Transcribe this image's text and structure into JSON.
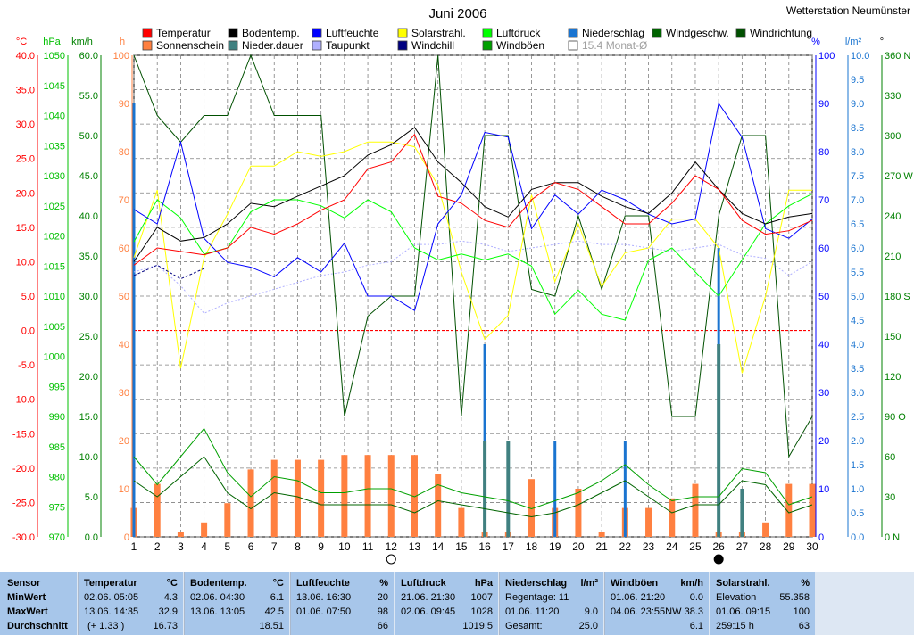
{
  "title": "Juni 2006",
  "station": "Wetterstation Neumünster",
  "colors": {
    "temperature": "#ff0000",
    "ground_temp": "#000000",
    "humidity": "#0000ff",
    "solar": "#ffff66",
    "pressure": "#00ff00",
    "precipitation": "#1a74d0",
    "wind_speed": "#006400",
    "wind_dir": "#005000",
    "sunshine": "#ff8040",
    "precip_duration": "#408080",
    "dewpoint": "#b0b0ff",
    "windchill": "#000080",
    "gusts": "#00a000",
    "monthly_avg": "#c0c0c0",
    "background": "#ffffff",
    "footer_bg": "#a7c6ea",
    "grid": "#808080",
    "zero_line": "#ff0000"
  },
  "legend": [
    {
      "label": "Temperatur",
      "color": "#ff0000"
    },
    {
      "label": "Bodentemp.",
      "color": "#000000"
    },
    {
      "label": "Luftfeuchte",
      "color": "#0000ff"
    },
    {
      "label": "Solarstrahl.",
      "color": "#ffff00"
    },
    {
      "label": "Luftdruck",
      "color": "#00ff00"
    },
    {
      "label": "Niederschlag",
      "color": "#1a74d0"
    },
    {
      "label": "Windgeschw.",
      "color": "#006400"
    },
    {
      "label": "Windrichtung",
      "color": "#005000"
    },
    {
      "label": "Sonnenschein",
      "color": "#ff8040"
    },
    {
      "label": "Nieder.dauer",
      "color": "#408080"
    },
    {
      "label": "Taupunkt",
      "color": "#b0b0ff"
    },
    {
      "label": "Windchill",
      "color": "#000080"
    },
    {
      "label": "Windböen",
      "color": "#00a000"
    },
    {
      "label": "15.4 Monat-Ø",
      "color": "#ffffff"
    }
  ],
  "axis_units": {
    "temp": "°C",
    "hpa": "hPa",
    "kmh": "km/h",
    "h": "h",
    "pct": "%",
    "lm2": "l/m²",
    "deg": "°",
    "w": "W",
    "s": "S",
    "n": "N"
  },
  "axes": {
    "temp": [
      "40.0",
      "35.0",
      "30.0",
      "25.0",
      "20.0",
      "15.0",
      "10.0",
      "5.0",
      "0.0",
      "-5.0",
      "-10.0",
      "-15.0",
      "-20.0",
      "-25.0",
      "-30.0"
    ],
    "hpa": [
      "1050",
      "1045",
      "1040",
      "1035",
      "1030",
      "1025",
      "1020",
      "1015",
      "1010",
      "1005",
      "1000",
      "995",
      "990",
      "985",
      "980",
      "975",
      "970"
    ],
    "kmh": [
      "60.0",
      "55.0",
      "50.0",
      "45.0",
      "40.0",
      "35.0",
      "30.0",
      "25.0",
      "20.0",
      "15.0",
      "10.0",
      "5.0",
      "0.0"
    ],
    "h": [
      "100",
      "90",
      "80",
      "70",
      "60",
      "50",
      "40",
      "30",
      "20",
      "10",
      "0"
    ],
    "pct": [
      "100",
      "90",
      "80",
      "70",
      "60",
      "50",
      "40",
      "30",
      "20",
      "10",
      "0"
    ],
    "lm2": [
      "10.0",
      "9.5",
      "9.0",
      "8.5",
      "8.0",
      "7.5",
      "7.0",
      "6.5",
      "6.0",
      "5.5",
      "5.0",
      "4.5",
      "4.0",
      "3.5",
      "3.0",
      "2.5",
      "2.0",
      "1.5",
      "1.0",
      "0.5",
      "0.0"
    ],
    "deg": [
      "360 N",
      "330",
      "300",
      "270 W",
      "240",
      "210",
      "180 S",
      "150",
      "120",
      "90 O",
      "60",
      "30",
      "0 N"
    ]
  },
  "chart_data": {
    "type": "line",
    "title": "Juni 2006",
    "x": [
      1,
      2,
      3,
      4,
      5,
      6,
      7,
      8,
      9,
      10,
      11,
      12,
      13,
      14,
      15,
      16,
      17,
      18,
      19,
      20,
      21,
      22,
      23,
      24,
      25,
      26,
      27,
      28,
      29,
      30
    ],
    "xlim": [
      1,
      30
    ],
    "grid": true,
    "legend_position": "top",
    "ylim": {
      "temp": [
        -30,
        40
      ],
      "pressure": [
        970,
        1050
      ],
      "wind": [
        0,
        60
      ],
      "humidity": [
        0,
        100
      ],
      "precip": [
        0,
        10
      ],
      "sunshine": [
        0,
        100
      ],
      "wind_dir": [
        0,
        360
      ]
    },
    "series": [
      {
        "name": "Temperatur",
        "axis": "temp",
        "color": "#ff0000",
        "values": [
          9.5,
          12.0,
          11.5,
          11.0,
          12.0,
          15.0,
          14.0,
          15.5,
          17.5,
          19.0,
          23.5,
          24.5,
          28.5,
          19.5,
          18.5,
          16.0,
          15.0,
          19.0,
          21.5,
          20.5,
          18.0,
          15.5,
          15.5,
          18.5,
          22.5,
          20.5,
          16.0,
          14.0,
          14.5,
          16.0
        ]
      },
      {
        "name": "Bodentemp.",
        "axis": "temp",
        "color": "#000000",
        "values": [
          10.0,
          15.0,
          13.0,
          13.5,
          15.5,
          18.5,
          18.0,
          19.5,
          21.0,
          22.5,
          25.5,
          27.0,
          29.5,
          24.5,
          21.5,
          18.0,
          16.5,
          20.5,
          21.5,
          21.5,
          19.5,
          18.0,
          17.0,
          20.0,
          24.5,
          20.5,
          17.0,
          15.5,
          16.5,
          17.0
        ]
      },
      {
        "name": "Luftfeuchte",
        "axis": "humidity",
        "color": "#0000ff",
        "values": [
          68,
          65,
          82,
          62,
          57,
          56,
          54,
          58,
          55,
          61,
          50,
          50,
          47,
          65,
          71,
          84,
          83,
          64,
          71,
          67,
          72,
          70,
          67,
          65,
          66,
          90,
          83,
          64,
          62,
          66
        ]
      },
      {
        "name": "Solarstrahl.",
        "axis": "humidity",
        "color": "#ffff00",
        "values": [
          58,
          72,
          35,
          58,
          67,
          77,
          77,
          80,
          79,
          80,
          82,
          82,
          81,
          73,
          55,
          41,
          46,
          71,
          53,
          65,
          52,
          59,
          60,
          66,
          66,
          60,
          34,
          50,
          72,
          72
        ]
      },
      {
        "name": "Luftdruck",
        "axis": "pressure",
        "color": "#00ff00",
        "values": [
          1019,
          1026,
          1023,
          1017,
          1018,
          1024,
          1026,
          1026,
          1025,
          1023,
          1026,
          1024,
          1018,
          1016,
          1017,
          1016,
          1017,
          1015,
          1007,
          1011,
          1007,
          1006,
          1016,
          1018,
          1014,
          1010,
          1016,
          1022,
          1025,
          1027
        ]
      },
      {
        "name": "Windgeschw.",
        "axis": "wind",
        "color": "#006400",
        "values": [
          7.0,
          5.0,
          7.5,
          10.0,
          5.5,
          3.5,
          5.5,
          5.0,
          4.0,
          4.0,
          4.0,
          4.0,
          3.0,
          4.5,
          4.0,
          3.5,
          3.0,
          2.5,
          3.0,
          4.0,
          5.5,
          7.0,
          5.0,
          3.0,
          4.0,
          4.0,
          7.0,
          6.5,
          3.0,
          4.0
        ]
      },
      {
        "name": "Windböen",
        "axis": "wind",
        "color": "#00a000",
        "values": [
          10.0,
          6.5,
          10.0,
          13.5,
          8.0,
          5.0,
          7.5,
          7.0,
          5.5,
          5.5,
          6.0,
          6.0,
          5.0,
          6.5,
          5.5,
          5.0,
          4.5,
          3.5,
          4.5,
          5.5,
          7.0,
          9.0,
          6.5,
          4.5,
          5.0,
          5.0,
          8.5,
          8.0,
          4.0,
          5.0
        ]
      },
      {
        "name": "Windrichtung",
        "axis": "wind_dir",
        "color": "#005000",
        "values": [
          360,
          315,
          295,
          315,
          315,
          360,
          315,
          315,
          315,
          90,
          165,
          180,
          180,
          360,
          90,
          300,
          300,
          185,
          180,
          240,
          185,
          240,
          240,
          90,
          90,
          240,
          300,
          300,
          60,
          90
        ]
      },
      {
        "name": "Windchill",
        "axis": "temp",
        "color": "#000080",
        "values": [
          8.0,
          9.5,
          7.5,
          9.0,
          null,
          null,
          null,
          null,
          null,
          null,
          null,
          null,
          null,
          null,
          null,
          null,
          null,
          null,
          null,
          null,
          null,
          null,
          null,
          null,
          null,
          null,
          null,
          null,
          null,
          null
        ]
      },
      {
        "name": "Taupunkt",
        "axis": "temp",
        "color": "#b0b0ff",
        "values": [
          8.5,
          9.5,
          6.5,
          2.5,
          4.0,
          5.0,
          6.0,
          7.0,
          8.0,
          8.5,
          9.5,
          10.0,
          12.5,
          12.5,
          13.0,
          12.5,
          11.5,
          12.0,
          12.5,
          13.0,
          12.5,
          12.5,
          12.0,
          11.5,
          12.0,
          12.5,
          11.0,
          10.5,
          8.0,
          10.0
        ]
      },
      {
        "name": "Sonnenschein",
        "axis": "sunshine",
        "color": "#ff8040",
        "values": [
          6,
          11,
          1,
          3,
          7,
          14,
          16,
          16,
          16,
          17,
          17,
          17,
          17,
          13,
          6,
          1,
          1,
          12,
          6,
          10,
          1,
          6,
          6,
          8,
          11,
          1,
          1,
          3,
          11,
          11
        ]
      },
      {
        "name": "Niederschlag",
        "axis": "precip",
        "color": "#1a74d0",
        "values": [
          9.0,
          0,
          0,
          0,
          0,
          0,
          0,
          0,
          0,
          0,
          0,
          0,
          0,
          0,
          0,
          4.0,
          2.0,
          0,
          2.0,
          0,
          0,
          2.0,
          0,
          0,
          0,
          6.0,
          0,
          0,
          0,
          0
        ]
      },
      {
        "name": "Nieder.dauer",
        "axis": "precip",
        "color": "#408080",
        "values": [
          0,
          0,
          0,
          0,
          0,
          0,
          0,
          0,
          0,
          0,
          0,
          0,
          0,
          0,
          0,
          0.2,
          0.2,
          0,
          0,
          0,
          0,
          0,
          0,
          0,
          0,
          0.4,
          0.1,
          0,
          0,
          0
        ]
      }
    ]
  },
  "footer": {
    "labels": {
      "sensor": "Sensor",
      "min": "MinWert",
      "max": "MaxWert",
      "avg": "Durchschnitt"
    },
    "temp": {
      "title": "Temperatur",
      "unit": "°C",
      "min_time": "02.06.  05:05",
      "min_val": "4.3",
      "max_time": "13.06.  14:35",
      "max_val": "32.9",
      "avg_note": "(+ 1.33 )",
      "avg_val": "16.73"
    },
    "ground": {
      "title": "Bodentemp.",
      "unit": "°C",
      "min_time": "02.06.  04:30",
      "min_val": "6.1",
      "max_time": "13.06.  13:05",
      "max_val": "42.5",
      "avg_val": "18.51"
    },
    "humidity": {
      "title": "Luftfeuchte",
      "unit": "%",
      "min_time": "13.06.  16:30",
      "min_val": "20",
      "max_time": "01.06.  07:50",
      "max_val": "98",
      "avg_val": "66"
    },
    "pressure": {
      "title": "Luftdruck",
      "unit": "hPa",
      "min_time": "21.06.  21:30",
      "min_val": "1007",
      "max_time": "02.06.  09:45",
      "max_val": "1028",
      "avg_val": "1019.5"
    },
    "precip": {
      "title": "Niederschlag",
      "unit": "l/m²",
      "row1": "Regentage: 11",
      "row2_label": "01.06.  11:20",
      "row2_val": "9.0",
      "row3_label": "Gesamt:",
      "row3_val": "25.0"
    },
    "gusts": {
      "title": "Windböen",
      "unit": "km/h",
      "min_time": "01.06.  21:20",
      "min_val": "0.0",
      "max_time": "04.06.  23:55NW",
      "max_val": "38.3",
      "avg_val": "6.1"
    },
    "solar": {
      "title": "Solarstrahl.",
      "unit": "%",
      "row1_label": "Elevation",
      "row1_val": "55.358",
      "row2_label": "01.06.  09:15",
      "row2_val": "100",
      "row3_label": "259:15 h",
      "row3_val": "63"
    }
  }
}
